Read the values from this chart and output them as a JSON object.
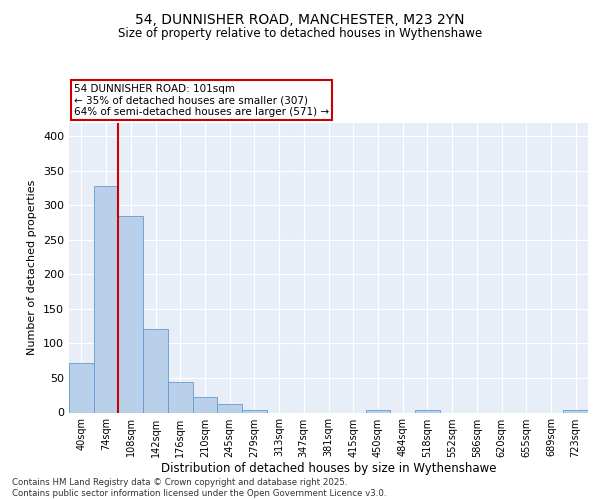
{
  "title_line1": "54, DUNNISHER ROAD, MANCHESTER, M23 2YN",
  "title_line2": "Size of property relative to detached houses in Wythenshawe",
  "xlabel": "Distribution of detached houses by size in Wythenshawe",
  "ylabel": "Number of detached properties",
  "categories": [
    "40sqm",
    "74sqm",
    "108sqm",
    "142sqm",
    "176sqm",
    "210sqm",
    "245sqm",
    "279sqm",
    "313sqm",
    "347sqm",
    "381sqm",
    "415sqm",
    "450sqm",
    "484sqm",
    "518sqm",
    "552sqm",
    "586sqm",
    "620sqm",
    "655sqm",
    "689sqm",
    "723sqm"
  ],
  "values": [
    72,
    328,
    284,
    121,
    44,
    23,
    13,
    4,
    0,
    0,
    0,
    0,
    4,
    0,
    3,
    0,
    0,
    0,
    0,
    0,
    3
  ],
  "bar_color": "#b8d0ea",
  "bar_edge_color": "#6699cc",
  "bg_color": "#e8eef8",
  "grid_color": "#ffffff",
  "vline_color": "#cc0000",
  "annotation_text": "54 DUNNISHER ROAD: 101sqm\n← 35% of detached houses are smaller (307)\n64% of semi-detached houses are larger (571) →",
  "annotation_box_color": "#cc0000",
  "footnote": "Contains HM Land Registry data © Crown copyright and database right 2025.\nContains public sector information licensed under the Open Government Licence v3.0.",
  "ylim": [
    0,
    420
  ],
  "yticks": [
    0,
    50,
    100,
    150,
    200,
    250,
    300,
    350,
    400
  ]
}
